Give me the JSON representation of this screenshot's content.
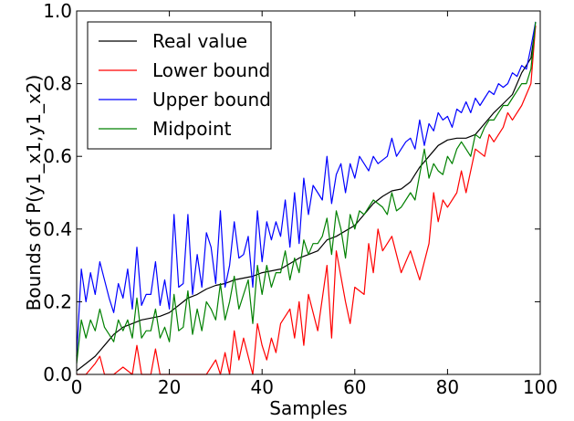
{
  "chart_data": {
    "type": "line",
    "xlabel": "Samples",
    "ylabel": "Bounds of P(y1_x1,y1_x2)",
    "xlim": [
      0,
      100
    ],
    "ylim": [
      0.0,
      1.0
    ],
    "xticks": [
      "0",
      "20",
      "40",
      "60",
      "80",
      "100"
    ],
    "yticks": [
      "0.0",
      "0.2",
      "0.4",
      "0.6",
      "0.8",
      "1.0"
    ],
    "grid": false,
    "legend_position": "top-left",
    "series": [
      {
        "name": "Real value",
        "color": "#000000",
        "x": [
          0,
          2,
          4,
          6,
          8,
          10,
          12,
          14,
          16,
          18,
          20,
          22,
          24,
          26,
          28,
          30,
          32,
          34,
          36,
          38,
          40,
          42,
          44,
          46,
          48,
          50,
          52,
          54,
          56,
          58,
          60,
          62,
          64,
          66,
          68,
          70,
          72,
          74,
          76,
          78,
          80,
          82,
          84,
          86,
          88,
          90,
          92,
          94,
          96,
          98,
          99
        ],
        "y": [
          0.01,
          0.03,
          0.05,
          0.08,
          0.11,
          0.13,
          0.14,
          0.15,
          0.155,
          0.16,
          0.17,
          0.19,
          0.21,
          0.22,
          0.235,
          0.245,
          0.25,
          0.26,
          0.265,
          0.27,
          0.28,
          0.285,
          0.29,
          0.305,
          0.32,
          0.33,
          0.34,
          0.37,
          0.38,
          0.395,
          0.41,
          0.44,
          0.47,
          0.49,
          0.505,
          0.51,
          0.53,
          0.57,
          0.6,
          0.63,
          0.645,
          0.65,
          0.65,
          0.66,
          0.69,
          0.72,
          0.745,
          0.77,
          0.83,
          0.87,
          0.96
        ]
      },
      {
        "name": "Lower bound",
        "color": "#ff0000",
        "x": [
          0,
          2,
          4,
          5,
          6,
          8,
          10,
          12,
          13,
          14,
          16,
          17,
          18,
          20,
          22,
          24,
          26,
          28,
          30,
          31,
          32,
          33,
          34,
          35,
          36,
          38,
          39,
          40,
          41,
          42,
          43,
          44,
          46,
          47,
          48,
          49,
          50,
          52,
          54,
          55,
          56,
          58,
          59,
          60,
          62,
          63,
          64,
          65,
          66,
          68,
          70,
          72,
          74,
          76,
          77,
          78,
          79,
          80,
          82,
          83,
          84,
          86,
          88,
          89,
          90,
          92,
          93,
          94,
          96,
          98,
          99
        ],
        "y": [
          0.0,
          0.0,
          0.03,
          0.05,
          0.0,
          0.0,
          0.02,
          0.0,
          0.08,
          0.0,
          0.0,
          0.07,
          0.0,
          0.0,
          0.0,
          0.0,
          0.0,
          0.0,
          0.04,
          0.0,
          0.06,
          0.0,
          0.12,
          0.04,
          0.1,
          0.0,
          0.14,
          0.08,
          0.04,
          0.1,
          0.06,
          0.14,
          0.18,
          0.1,
          0.2,
          0.08,
          0.22,
          0.12,
          0.3,
          0.1,
          0.34,
          0.2,
          0.14,
          0.24,
          0.22,
          0.36,
          0.28,
          0.4,
          0.34,
          0.38,
          0.28,
          0.34,
          0.26,
          0.36,
          0.5,
          0.42,
          0.48,
          0.46,
          0.5,
          0.56,
          0.5,
          0.62,
          0.6,
          0.66,
          0.64,
          0.68,
          0.72,
          0.7,
          0.74,
          0.8,
          0.96
        ]
      },
      {
        "name": "Upper bound",
        "color": "#0000ff",
        "x": [
          0,
          1,
          2,
          3,
          4,
          5,
          6,
          7,
          8,
          9,
          10,
          11,
          12,
          13,
          14,
          15,
          16,
          17,
          18,
          19,
          20,
          21,
          22,
          23,
          24,
          25,
          26,
          27,
          28,
          29,
          30,
          31,
          32,
          33,
          34,
          35,
          36,
          37,
          38,
          39,
          40,
          41,
          42,
          43,
          44,
          45,
          46,
          47,
          48,
          49,
          50,
          51,
          52,
          53,
          54,
          55,
          56,
          57,
          58,
          59,
          60,
          61,
          62,
          63,
          64,
          65,
          66,
          67,
          68,
          69,
          70,
          71,
          72,
          73,
          74,
          75,
          76,
          77,
          78,
          79,
          80,
          81,
          82,
          83,
          84,
          85,
          86,
          87,
          88,
          89,
          90,
          91,
          92,
          93,
          94,
          95,
          96,
          97,
          98,
          99
        ],
        "y": [
          0.05,
          0.29,
          0.2,
          0.28,
          0.22,
          0.31,
          0.26,
          0.21,
          0.17,
          0.25,
          0.21,
          0.29,
          0.18,
          0.35,
          0.19,
          0.22,
          0.22,
          0.31,
          0.19,
          0.26,
          0.18,
          0.44,
          0.24,
          0.25,
          0.44,
          0.22,
          0.33,
          0.24,
          0.39,
          0.35,
          0.25,
          0.45,
          0.24,
          0.3,
          0.42,
          0.32,
          0.33,
          0.38,
          0.24,
          0.45,
          0.31,
          0.42,
          0.37,
          0.42,
          0.38,
          0.48,
          0.35,
          0.5,
          0.36,
          0.54,
          0.44,
          0.52,
          0.5,
          0.48,
          0.6,
          0.47,
          0.55,
          0.58,
          0.5,
          0.58,
          0.54,
          0.6,
          0.58,
          0.56,
          0.6,
          0.58,
          0.59,
          0.6,
          0.65,
          0.6,
          0.62,
          0.64,
          0.65,
          0.62,
          0.7,
          0.63,
          0.69,
          0.67,
          0.72,
          0.7,
          0.71,
          0.68,
          0.73,
          0.72,
          0.75,
          0.72,
          0.76,
          0.74,
          0.76,
          0.78,
          0.77,
          0.8,
          0.79,
          0.8,
          0.83,
          0.82,
          0.85,
          0.84,
          0.9,
          0.97
        ]
      },
      {
        "name": "Midpoint",
        "color": "#008000",
        "x": [
          0,
          1,
          2,
          3,
          4,
          5,
          6,
          7,
          8,
          9,
          10,
          11,
          12,
          13,
          14,
          15,
          16,
          17,
          18,
          19,
          20,
          21,
          22,
          23,
          24,
          25,
          26,
          27,
          28,
          29,
          30,
          31,
          32,
          33,
          34,
          35,
          36,
          37,
          38,
          39,
          40,
          41,
          42,
          43,
          44,
          45,
          46,
          47,
          48,
          49,
          50,
          51,
          52,
          53,
          54,
          55,
          56,
          57,
          58,
          59,
          60,
          61,
          62,
          63,
          64,
          65,
          66,
          67,
          68,
          69,
          70,
          71,
          72,
          73,
          74,
          75,
          76,
          77,
          78,
          79,
          80,
          81,
          82,
          83,
          84,
          85,
          86,
          87,
          88,
          89,
          90,
          91,
          92,
          93,
          94,
          95,
          96,
          97,
          98,
          99
        ],
        "y": [
          0.03,
          0.15,
          0.1,
          0.15,
          0.12,
          0.18,
          0.13,
          0.11,
          0.09,
          0.15,
          0.12,
          0.15,
          0.1,
          0.21,
          0.1,
          0.12,
          0.12,
          0.18,
          0.1,
          0.13,
          0.09,
          0.22,
          0.12,
          0.13,
          0.23,
          0.11,
          0.18,
          0.12,
          0.2,
          0.18,
          0.15,
          0.25,
          0.15,
          0.2,
          0.27,
          0.18,
          0.22,
          0.26,
          0.14,
          0.3,
          0.22,
          0.3,
          0.24,
          0.28,
          0.28,
          0.34,
          0.26,
          0.32,
          0.28,
          0.37,
          0.33,
          0.36,
          0.36,
          0.38,
          0.43,
          0.33,
          0.45,
          0.4,
          0.32,
          0.44,
          0.4,
          0.45,
          0.44,
          0.46,
          0.48,
          0.47,
          0.46,
          0.44,
          0.5,
          0.45,
          0.46,
          0.48,
          0.5,
          0.48,
          0.55,
          0.62,
          0.54,
          0.58,
          0.56,
          0.55,
          0.6,
          0.58,
          0.62,
          0.64,
          0.62,
          0.6,
          0.66,
          0.65,
          0.68,
          0.7,
          0.7,
          0.72,
          0.74,
          0.74,
          0.76,
          0.78,
          0.8,
          0.8,
          0.84,
          0.97
        ]
      }
    ]
  }
}
